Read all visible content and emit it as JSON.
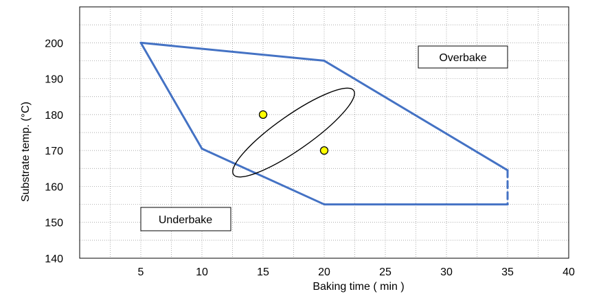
{
  "chart_data": {
    "type": "line",
    "xlabel": "Baking time ( min )",
    "ylabel": "Substrate temp. (°C)",
    "xlim": [
      0,
      40
    ],
    "ylim": [
      140,
      210
    ],
    "x_ticks": [
      "5",
      "10",
      "15",
      "20",
      "25",
      "30",
      "35",
      "40"
    ],
    "y_ticks": [
      "140",
      "150",
      "160",
      "170",
      "180",
      "190",
      "200"
    ],
    "grid": "dotted horizontal and vertical minor gridlines",
    "process_window": {
      "color": "#4472C4",
      "vertices": [
        [
          5,
          200
        ],
        [
          20,
          195
        ],
        [
          35,
          164.5
        ],
        [
          35,
          155
        ],
        [
          20,
          155
        ],
        [
          10,
          170.5
        ]
      ],
      "dashed_edge": [
        [
          35,
          164.5
        ],
        [
          35,
          155
        ]
      ]
    },
    "ellipse": {
      "color": "#000000",
      "center": [
        17.5,
        175
      ],
      "radius_x": 5,
      "radius_y": 11.5,
      "rotation_deg": -35
    },
    "points": {
      "fill": "#FFFF00",
      "stroke": "#000000",
      "values": [
        [
          15,
          180
        ],
        [
          20,
          170
        ]
      ]
    },
    "annotations": [
      "Overbake",
      "Underbake"
    ]
  }
}
